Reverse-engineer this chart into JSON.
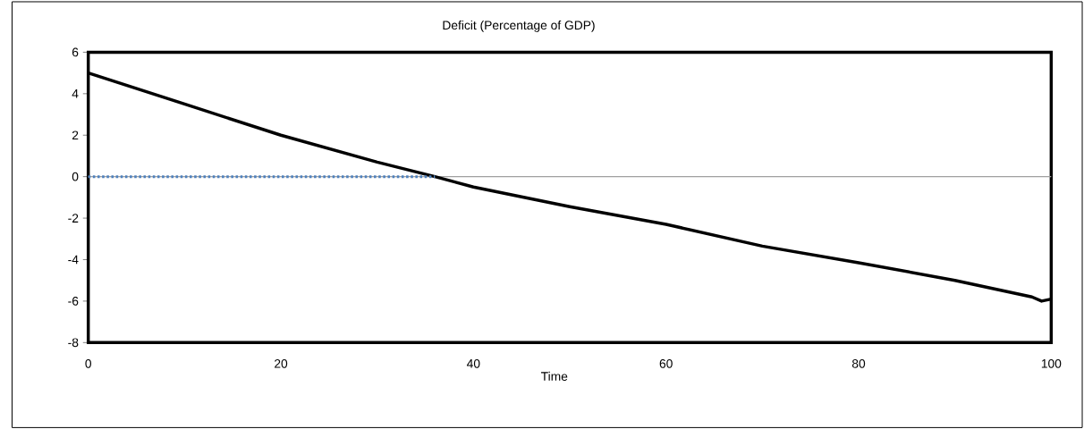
{
  "chart_data": {
    "type": "line",
    "title": "Deficit (Percentage of GDP)",
    "xlabel": "Time",
    "series": [
      {
        "color": "#000000",
        "x": [
          0,
          10,
          20,
          30,
          36,
          40,
          50,
          60,
          70,
          80,
          90,
          98,
          99,
          100
        ],
        "values": [
          5.0,
          3.5,
          2.0,
          0.7,
          0.0,
          -0.5,
          -1.45,
          -2.3,
          -3.35,
          -4.15,
          -5.0,
          -5.8,
          -6.0,
          -5.9
        ]
      },
      {
        "color": "#4f81bd",
        "x": [
          0,
          36
        ],
        "values": [
          0,
          0
        ],
        "line_style": "dotted"
      }
    ],
    "ref_lines": [
      {
        "axis": "y",
        "value": 0,
        "color": "#a0a0a0"
      }
    ],
    "xlim": [
      0,
      100
    ],
    "xticks": [
      0,
      20,
      40,
      60,
      80,
      100
    ],
    "ylim": [
      -8,
      6
    ],
    "yticks": [
      -8,
      -6,
      -4,
      -2,
      0,
      2,
      4,
      6
    ]
  }
}
